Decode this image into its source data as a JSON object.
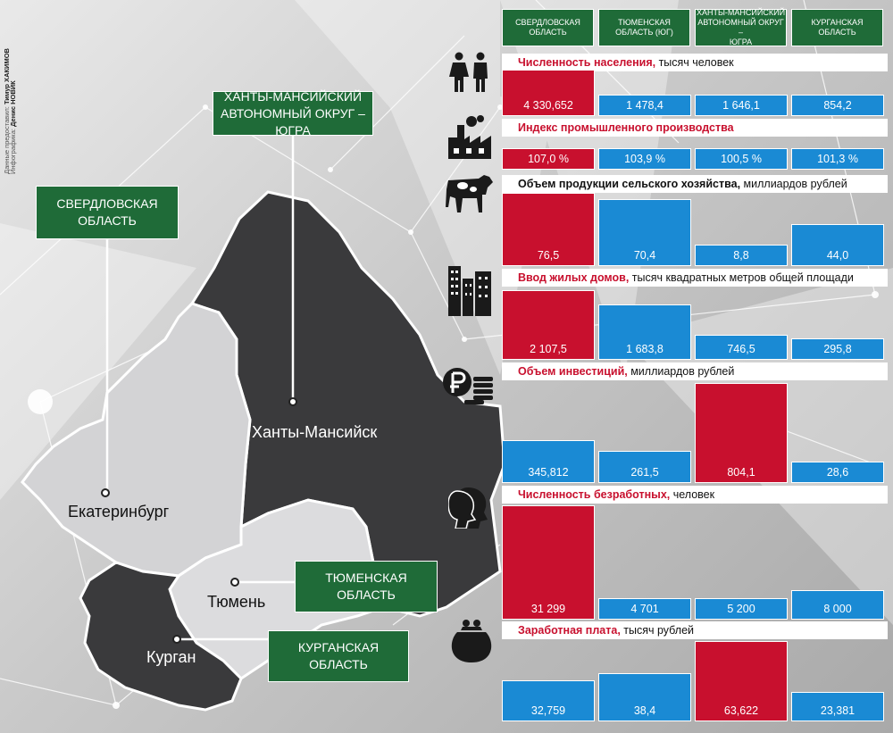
{
  "credits": {
    "data_label": "Данные предоставил:",
    "data_author": "Тимур ХАКИМОВ",
    "graphics_label": "Инфографика:",
    "graphics_author": "Денис НОВИК"
  },
  "map": {
    "regions": [
      {
        "id": "sverdlovsk",
        "label_line1": "СВЕРДЛОВСКАЯ",
        "label_line2": "ОБЛАСТЬ"
      },
      {
        "id": "hmao",
        "label_line1": "ХАНТЫ-МАНСИЙСКИЙ",
        "label_line2": "АВТОНОМНЫЙ ОКРУГ – ЮГРА"
      },
      {
        "id": "tyumen",
        "label_line1": "ТЮМЕНСКАЯ",
        "label_line2": "ОБЛАСТЬ"
      },
      {
        "id": "kurgan",
        "label_line1": "КУРГАНСКАЯ",
        "label_line2": "ОБЛАСТЬ"
      }
    ],
    "cities": {
      "khanty": "Ханты-Мансийск",
      "ekb": "Екатеринбург",
      "tyumen": "Тюмень",
      "kurgan": "Курган"
    }
  },
  "colors": {
    "red": "#c8102e",
    "blue": "#1a8ad4",
    "green": "#1f6b38",
    "dark": "#333333"
  },
  "columns": [
    {
      "line1": "СВЕРДЛОВСКАЯ",
      "line2": "ОБЛАСТЬ"
    },
    {
      "line1": "ТЮМЕНСКАЯ",
      "line2": "ОБЛАСТЬ (ЮГ)"
    },
    {
      "line1": "ХАНТЫ-МАНСИЙСКИЙ",
      "line2": "АВТОНОМНЫЙ ОКРУГ –",
      "line3": "ЮГРА"
    },
    {
      "line1": "КУРГАНСКАЯ",
      "line2": "ОБЛАСТЬ"
    }
  ],
  "chart_data": [
    {
      "type": "bar",
      "icon": "people-icon",
      "title_name": "Численность населения,",
      "title_unit": " тысяч человек",
      "categories": [
        "Свердловская область",
        "Тюменская область (юг)",
        "Ханты-Мансийский автономный округ – Югра",
        "Курганская область"
      ],
      "values": [
        4330.652,
        1478.4,
        1646.1,
        854.2
      ],
      "labels": [
        "4 330,652",
        "1 478,4",
        "1 646,1",
        "854,2"
      ],
      "highlight": 0
    },
    {
      "type": "bar",
      "icon": "factory-icon",
      "title_name": "Индекс промышленного производства",
      "title_unit": "",
      "categories": [
        "Свердловская область",
        "Тюменская область (юг)",
        "Ханты-Мансийский автономный округ – Югра",
        "Курганская область"
      ],
      "values": [
        107.0,
        103.9,
        100.5,
        101.3
      ],
      "labels": [
        "107,0 %",
        "103,9 %",
        "100,5 %",
        "101,3 %"
      ],
      "highlight": 0
    },
    {
      "type": "bar",
      "icon": "cow-icon",
      "title_name": "Объем продукции сельского хозяйства,",
      "title_unit": " миллиардов рублей",
      "categories": [
        "Свердловская область",
        "Тюменская область (юг)",
        "Ханты-Мансийский автономный округ – Югра",
        "Курганская область"
      ],
      "values": [
        76.5,
        70.4,
        8.8,
        44.0
      ],
      "labels": [
        "76,5",
        "70,4",
        "8,8",
        "44,0"
      ],
      "highlight": 0
    },
    {
      "type": "bar",
      "icon": "buildings-icon",
      "title_name": "Ввод жилых домов,",
      "title_unit": " тысяч квадратных метров общей площади",
      "categories": [
        "Свердловская область",
        "Тюменская область (юг)",
        "Ханты-Мансийский автономный округ – Югра",
        "Курганская область"
      ],
      "values": [
        2107.5,
        1683.8,
        746.5,
        295.8
      ],
      "labels": [
        "2 107,5",
        "1 683,8",
        "746,5",
        "295,8"
      ],
      "highlight": 0
    },
    {
      "type": "bar",
      "icon": "ruble-coins-icon",
      "title_name": "Объем инвестиций,",
      "title_unit": " миллиардов рублей",
      "categories": [
        "Свердловская область",
        "Тюменская область (юг)",
        "Ханты-Мансийский автономный округ – Югра",
        "Курганская область"
      ],
      "values": [
        345.812,
        261.5,
        804.1,
        28.6
      ],
      "labels": [
        "345,812",
        "261,5",
        "804,1",
        "28,6"
      ],
      "highlight": 2
    },
    {
      "type": "bar",
      "icon": "faces-icon",
      "title_name": "Численность безработных,",
      "title_unit": " человек",
      "categories": [
        "Свердловская область",
        "Тюменская область (юг)",
        "Ханты-Мансийский автономный округ – Югра",
        "Курганская область"
      ],
      "values": [
        31299,
        4701,
        5200,
        8000
      ],
      "labels": [
        "31 299",
        "4 701",
        "5 200",
        "8 000"
      ],
      "highlight": 0
    },
    {
      "type": "bar",
      "icon": "purse-icon",
      "title_name": "Заработная плата,",
      "title_unit": " тысяч рублей",
      "categories": [
        "Свердловская область",
        "Тюменская область (юг)",
        "Ханты-Мансийский автономный округ – Югра",
        "Курганская область"
      ],
      "values": [
        32.759,
        38.4,
        63.622,
        23.381
      ],
      "labels": [
        "32,759",
        "38,4",
        "63,622",
        "23,381"
      ],
      "highlight": 2
    }
  ]
}
